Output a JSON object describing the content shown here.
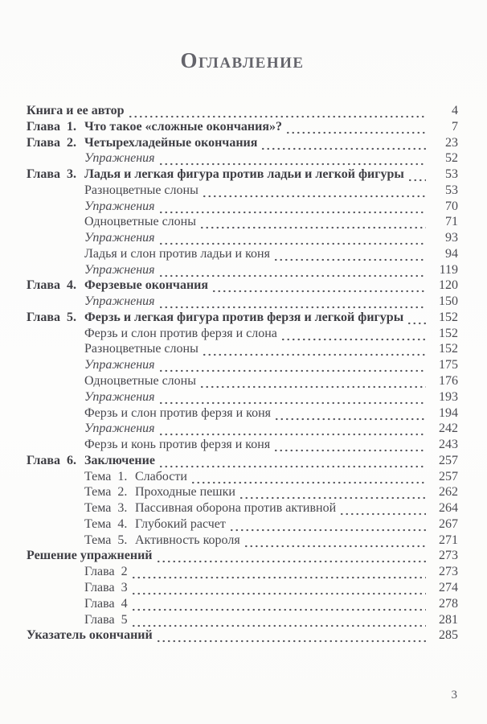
{
  "page": {
    "title": "Оглавление",
    "folio": "3"
  },
  "toc": {
    "entries": [
      {
        "indent": 0,
        "bold": true,
        "italic": false,
        "prefix": "",
        "label": "Книга и ее автор",
        "page": "4"
      },
      {
        "indent": 0,
        "bold": true,
        "italic": false,
        "prefix": "Глава  1.",
        "label": "Что такое «сложные окончания»?",
        "page": "7"
      },
      {
        "indent": 0,
        "bold": true,
        "italic": false,
        "prefix": "Глава  2.",
        "label": "Четырехладейные окончания",
        "page": "23"
      },
      {
        "indent": 1,
        "bold": false,
        "italic": true,
        "prefix": "",
        "label": "Упражнения",
        "page": "52"
      },
      {
        "indent": 0,
        "bold": true,
        "italic": false,
        "prefix": "Глава  3.",
        "label": "Ладья и легкая фигура против ладьи и легкой фигуры",
        "page": "53"
      },
      {
        "indent": 1,
        "bold": false,
        "italic": false,
        "prefix": "",
        "label": "Разноцветные слоны",
        "page": "53"
      },
      {
        "indent": 1,
        "bold": false,
        "italic": true,
        "prefix": "",
        "label": "Упражнения",
        "page": "70"
      },
      {
        "indent": 1,
        "bold": false,
        "italic": false,
        "prefix": "",
        "label": "Одноцветные слоны",
        "page": "71"
      },
      {
        "indent": 1,
        "bold": false,
        "italic": true,
        "prefix": "",
        "label": "Упражнения",
        "page": "93"
      },
      {
        "indent": 1,
        "bold": false,
        "italic": false,
        "prefix": "",
        "label": "Ладья и слон против ладьи и коня",
        "page": "94"
      },
      {
        "indent": 1,
        "bold": false,
        "italic": true,
        "prefix": "",
        "label": "Упражнения",
        "page": "119"
      },
      {
        "indent": 0,
        "bold": true,
        "italic": false,
        "prefix": "Глава  4.",
        "label": "Ферзевые окончания",
        "page": "120"
      },
      {
        "indent": 1,
        "bold": false,
        "italic": true,
        "prefix": "",
        "label": "Упражнения",
        "page": "150"
      },
      {
        "indent": 0,
        "bold": true,
        "italic": false,
        "prefix": "Глава  5.",
        "label": "Ферзь и легкая фигура против ферзя и легкой фигуры",
        "page": "152"
      },
      {
        "indent": 1,
        "bold": false,
        "italic": false,
        "prefix": "",
        "label": "Ферзь и слон против ферзя и слона",
        "page": "152"
      },
      {
        "indent": 1,
        "bold": false,
        "italic": false,
        "prefix": "",
        "label": "Разноцветные слоны",
        "page": "152"
      },
      {
        "indent": 1,
        "bold": false,
        "italic": true,
        "prefix": "",
        "label": "Упражнения",
        "page": "175"
      },
      {
        "indent": 1,
        "bold": false,
        "italic": false,
        "prefix": "",
        "label": "Одноцветные слоны",
        "page": "176"
      },
      {
        "indent": 1,
        "bold": false,
        "italic": true,
        "prefix": "",
        "label": "Упражнения",
        "page": "193"
      },
      {
        "indent": 1,
        "bold": false,
        "italic": false,
        "prefix": "",
        "label": "Ферзь и слон против ферзя и коня",
        "page": "194"
      },
      {
        "indent": 1,
        "bold": false,
        "italic": true,
        "prefix": "",
        "label": "Упражнения",
        "page": "242"
      },
      {
        "indent": 1,
        "bold": false,
        "italic": false,
        "prefix": "",
        "label": "Ферзь и конь против ферзя и коня",
        "page": "243"
      },
      {
        "indent": 0,
        "bold": true,
        "italic": false,
        "prefix": "Глава  6.",
        "label": "Заключение",
        "page": "257"
      },
      {
        "indent": 1,
        "bold": false,
        "italic": false,
        "prefix": "Тема  1.",
        "label": "Слабости",
        "page": "257"
      },
      {
        "indent": 1,
        "bold": false,
        "italic": false,
        "prefix": "Тема  2.",
        "label": "Проходные пешки",
        "page": "262"
      },
      {
        "indent": 1,
        "bold": false,
        "italic": false,
        "prefix": "Тема  3.",
        "label": "Пассивная оборона против активной",
        "page": "264"
      },
      {
        "indent": 1,
        "bold": false,
        "italic": false,
        "prefix": "Тема  4.",
        "label": "Глубокий расчет",
        "page": "267"
      },
      {
        "indent": 1,
        "bold": false,
        "italic": false,
        "prefix": "Тема  5.",
        "label": "Активность короля",
        "page": "271"
      },
      {
        "indent": 0,
        "bold": true,
        "italic": false,
        "prefix": "",
        "label": "Решение упражнений",
        "page": "273"
      },
      {
        "indent": 1,
        "bold": false,
        "italic": false,
        "prefix": "",
        "label": "Глава  2",
        "page": "273"
      },
      {
        "indent": 1,
        "bold": false,
        "italic": false,
        "prefix": "",
        "label": "Глава  3",
        "page": "274"
      },
      {
        "indent": 1,
        "bold": false,
        "italic": false,
        "prefix": "",
        "label": "Глава  4",
        "page": "278"
      },
      {
        "indent": 1,
        "bold": false,
        "italic": false,
        "prefix": "",
        "label": "Глава  5",
        "page": "281"
      },
      {
        "indent": 0,
        "bold": true,
        "italic": false,
        "prefix": "",
        "label": "Указатель окончаний",
        "page": "285"
      }
    ]
  }
}
